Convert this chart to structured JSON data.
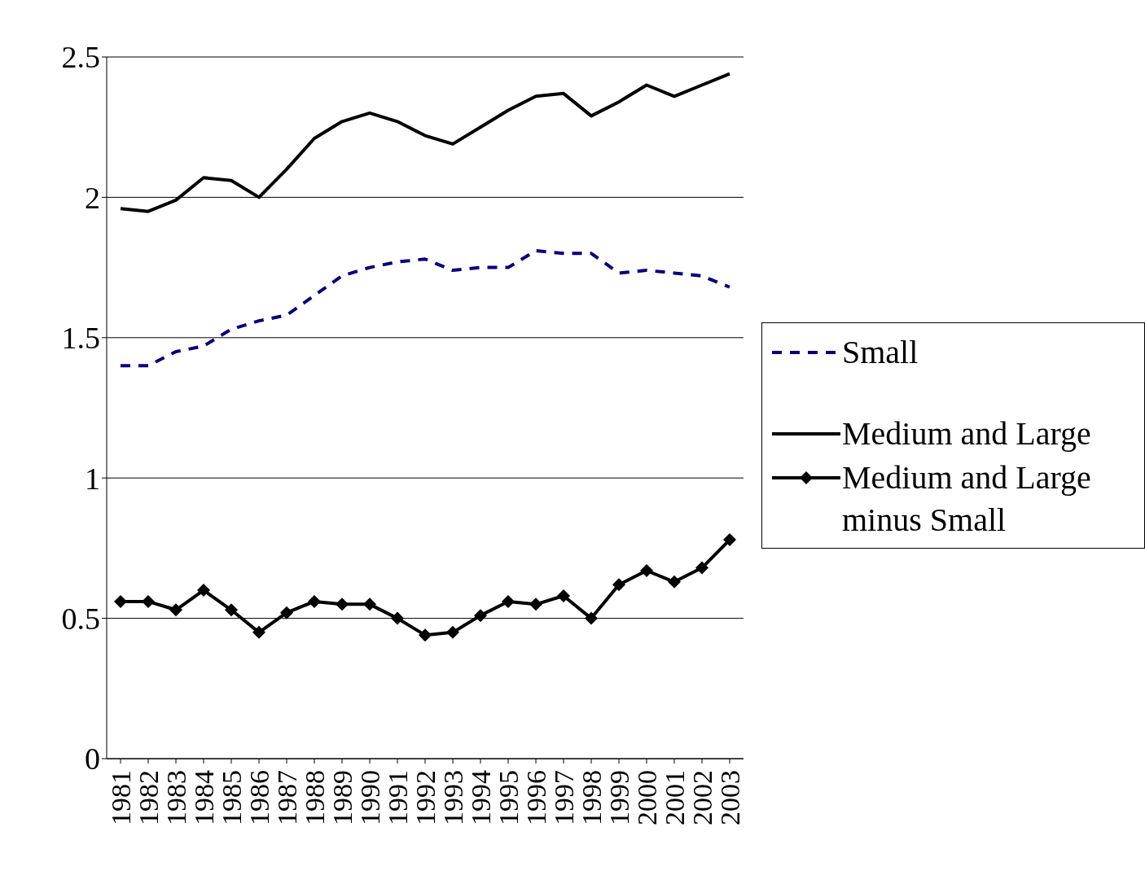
{
  "chart_data": {
    "type": "line",
    "categories": [
      "1981",
      "1982",
      "1983",
      "1984",
      "1985",
      "1986",
      "1987",
      "1988",
      "1989",
      "1990",
      "1991",
      "1992",
      "1993",
      "1994",
      "1995",
      "1996",
      "1997",
      "1998",
      "1999",
      "2000",
      "2001",
      "2002",
      "2003"
    ],
    "ylim": [
      0,
      2.5
    ],
    "yticks": [
      0,
      0.5,
      1,
      1.5,
      2,
      2.5
    ],
    "grid": "y",
    "legend": "right",
    "series": [
      {
        "name": "Small",
        "color": "#000080",
        "line_style": "dashed",
        "marker": "none",
        "values": [
          1.4,
          1.4,
          1.45,
          1.47,
          1.53,
          1.56,
          1.58,
          1.65,
          1.72,
          1.75,
          1.77,
          1.78,
          1.74,
          1.75,
          1.75,
          1.81,
          1.8,
          1.8,
          1.73,
          1.74,
          1.73,
          1.72,
          1.68
        ]
      },
      {
        "name": "Medium and Large",
        "color": "#000000",
        "line_style": "solid",
        "marker": "none",
        "values": [
          1.96,
          1.95,
          1.99,
          2.07,
          2.06,
          2.0,
          2.1,
          2.21,
          2.27,
          2.3,
          2.27,
          2.22,
          2.19,
          2.25,
          2.31,
          2.36,
          2.37,
          2.29,
          2.34,
          2.4,
          2.36,
          2.4,
          2.44
        ]
      },
      {
        "name": "Medium and Large minus Small",
        "color": "#000000",
        "line_style": "solid",
        "marker": "diamond",
        "values": [
          0.56,
          0.56,
          0.53,
          0.6,
          0.53,
          0.45,
          0.52,
          0.56,
          0.55,
          0.55,
          0.5,
          0.44,
          0.45,
          0.51,
          0.56,
          0.55,
          0.58,
          0.5,
          0.62,
          0.67,
          0.63,
          0.68,
          0.78
        ]
      }
    ]
  }
}
